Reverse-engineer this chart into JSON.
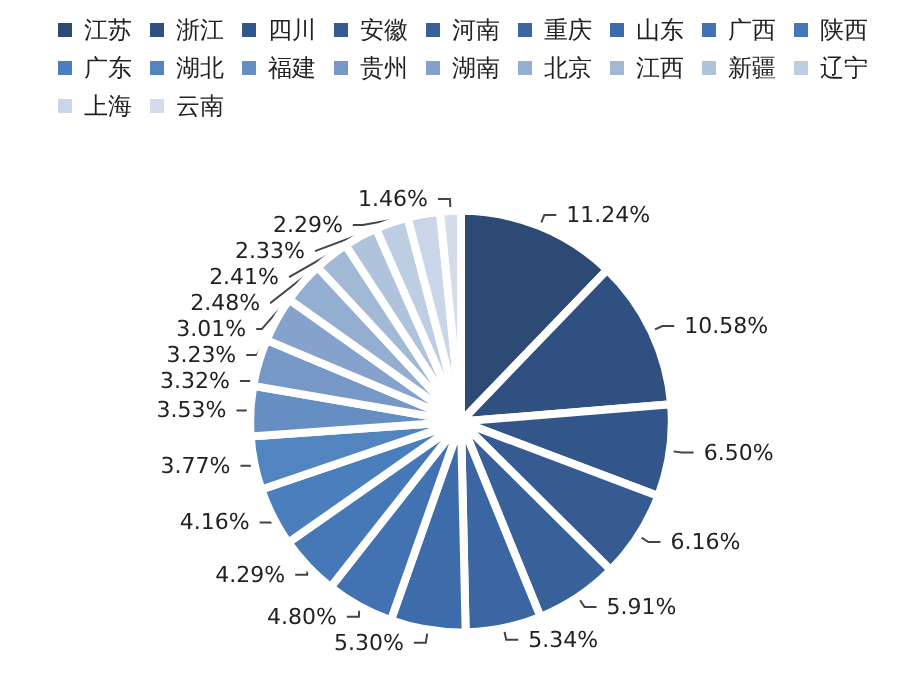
{
  "chart_data": {
    "type": "pie",
    "categories": [
      "江苏",
      "浙江",
      "四川",
      "安徽",
      "河南",
      "重庆",
      "山东",
      "广西",
      "陕西",
      "广东",
      "湖北",
      "福建",
      "贵州",
      "湖南",
      "北京",
      "江西",
      "新疆",
      "辽宁",
      "上海",
      "云南"
    ],
    "values": [
      11.24,
      10.58,
      6.5,
      6.16,
      5.91,
      5.34,
      5.3,
      4.8,
      4.29,
      4.16,
      3.77,
      3.53,
      3.32,
      3.23,
      3.01,
      2.48,
      2.41,
      2.33,
      2.29,
      1.46
    ],
    "value_labels": [
      "11.24%",
      "10.58%",
      "6.50%",
      "6.16%",
      "5.91%",
      "5.34%",
      "5.30%",
      "4.80%",
      "4.29%",
      "4.16%",
      "3.77%",
      "3.53%",
      "3.32%",
      "3.23%",
      "3.01%",
      "2.48%",
      "2.41%",
      "2.33%",
      "2.29%",
      "1.46%"
    ],
    "colors": [
      "#2c4a74",
      "#2f5080",
      "#32558a",
      "#355b92",
      "#38619a",
      "#3b66a2",
      "#3e6caa",
      "#4272b2",
      "#4678b8",
      "#4a7ebd",
      "#5284c0",
      "#658fc3",
      "#7598c7",
      "#84a2cb",
      "#93aed1",
      "#a2b9d6",
      "#b0c3dc",
      "#bdcde2",
      "#c9d5e8",
      "#d4dcec"
    ],
    "legend": "top"
  }
}
